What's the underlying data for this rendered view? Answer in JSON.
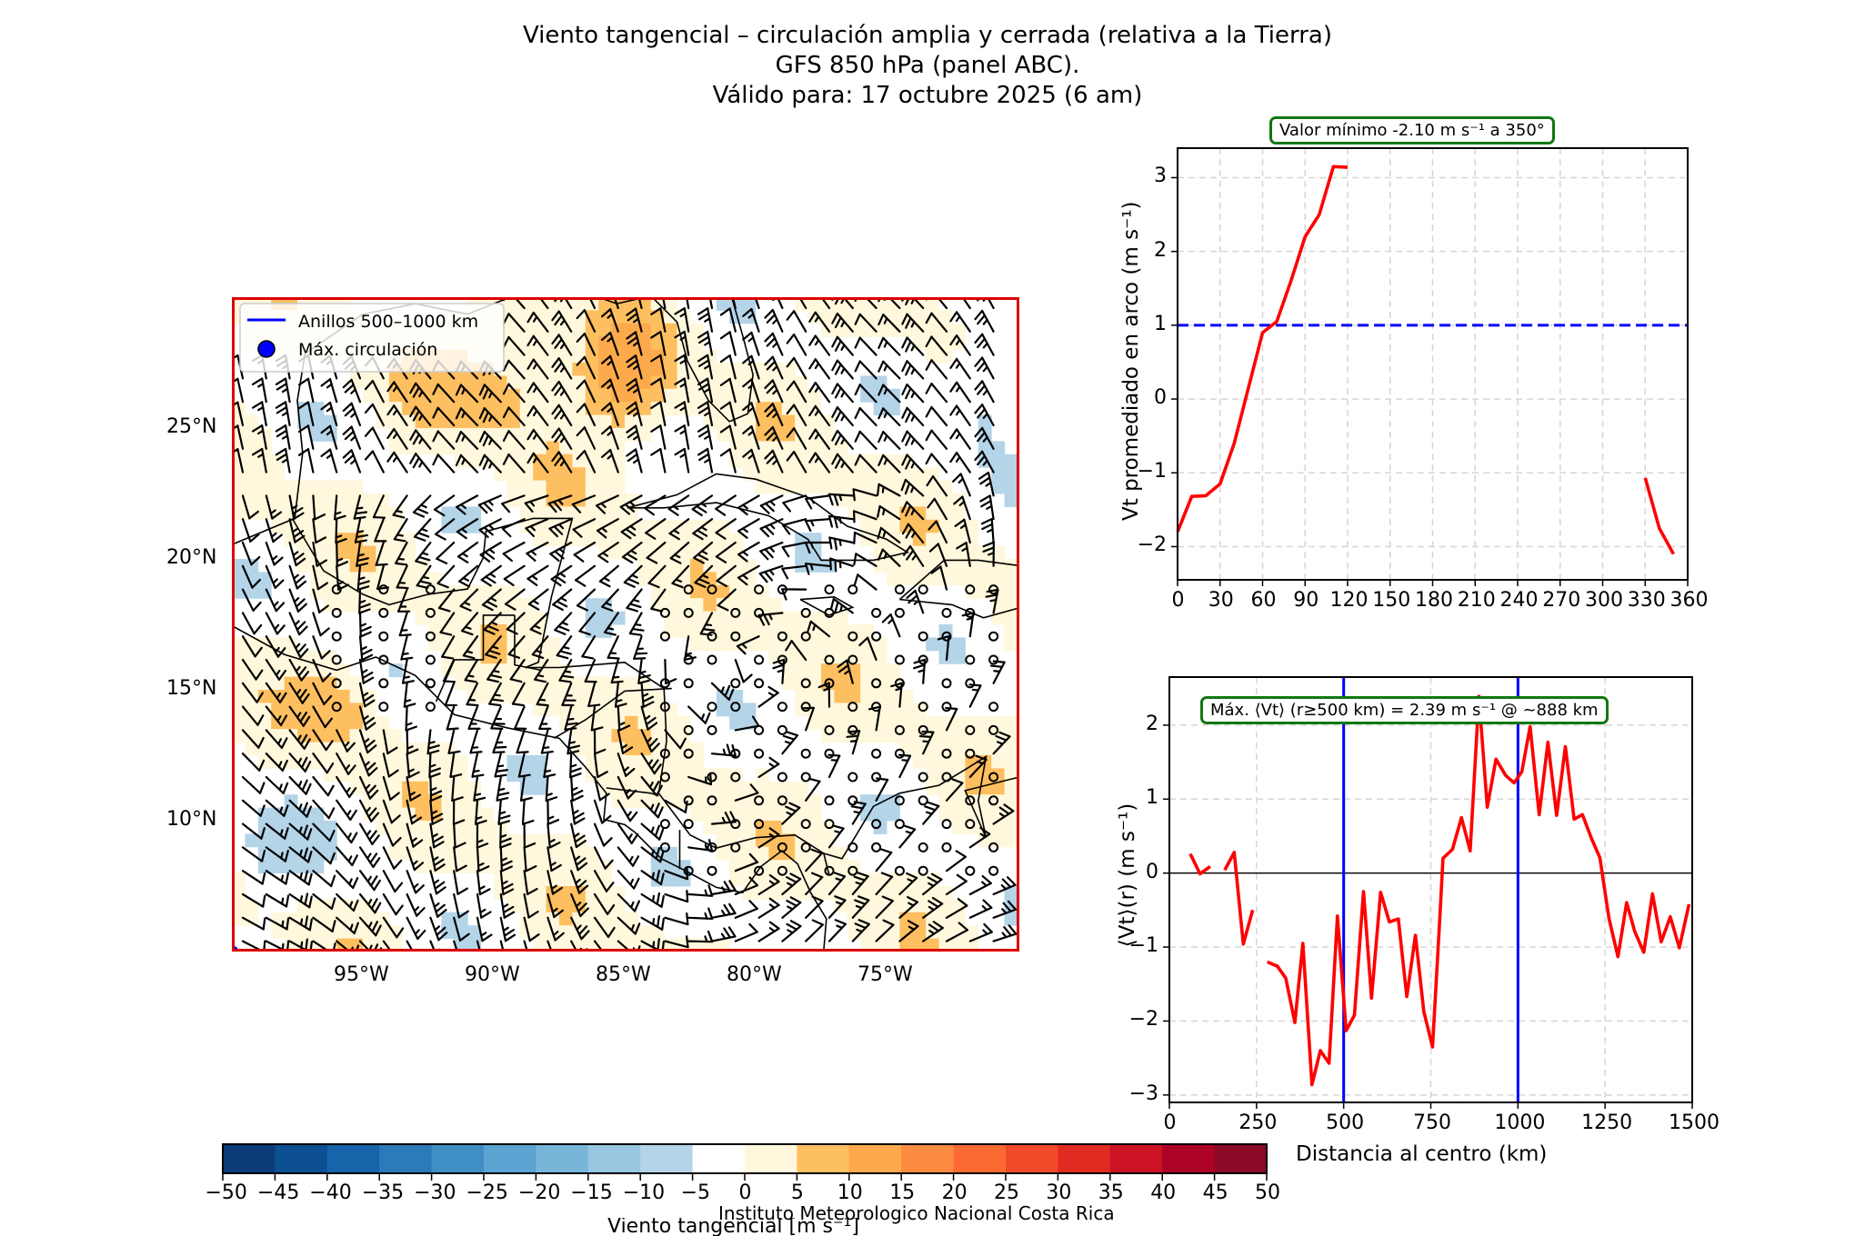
{
  "figure": {
    "title_line1": "Viento tangencial – circulación amplia y cerrada (relativa a la Tierra)",
    "title_line2": "GFS 850 hPa (panel ABC).",
    "title_line3": "Válido para: 17 octubre 2025 (6 am)",
    "credit": "Instituto Meteorologico Nacional Costa Rica"
  },
  "map": {
    "legend": {
      "rings_label": "Anillos 500–1000 km",
      "max_label": "Máx. circulación"
    },
    "lat_ticks": [
      "25°N",
      "20°N",
      "15°N",
      "10°N"
    ],
    "lon_ticks": [
      "95°W",
      "90°W",
      "85°W",
      "80°W",
      "75°W"
    ],
    "frame_color": "#dd0000"
  },
  "colorbar": {
    "label": "Viento tangencial [m s⁻¹]",
    "ticks": [
      "−50",
      "−45",
      "−40",
      "−35",
      "−30",
      "−25",
      "−20",
      "−15",
      "−10",
      "−5",
      "0",
      "5",
      "10",
      "15",
      "20",
      "25",
      "30",
      "35",
      "40",
      "45",
      "50"
    ],
    "colors": [
      "#0b3b78",
      "#0c4f93",
      "#1764ab",
      "#2b7bba",
      "#3f8fc5",
      "#5ba3d0",
      "#78b5d8",
      "#99c7e2",
      "#b4d4e8",
      "#ffffff",
      "#fff8dc",
      "#fdbf5f",
      "#fdaa4c",
      "#fc8b3f",
      "#fb6a32",
      "#f04a2a",
      "#e02a22",
      "#cb1324",
      "#ac0327",
      "#8a0a27"
    ]
  },
  "chart_data": [
    {
      "type": "line",
      "title": "Valor mínimo -2.10 m s⁻¹ a 350°",
      "xlabel": "",
      "ylabel": "Vt promediado en arco (m s⁻¹)",
      "xlim": [
        0,
        360
      ],
      "ylim": [
        -2.45,
        3.4
      ],
      "xticks": [
        "0",
        "30",
        "60",
        "90",
        "120",
        "150",
        "180",
        "210",
        "240",
        "270",
        "300",
        "330",
        "360"
      ],
      "yticks": [
        "−2",
        "−1",
        "0",
        "1",
        "2",
        "3"
      ],
      "grid": true,
      "threshold": {
        "value": 1,
        "color": "#0000ff",
        "style": "dashed"
      },
      "series": [
        {
          "name": "segment-1",
          "color": "#ff0000",
          "x": [
            0,
            10,
            20,
            30,
            40,
            50,
            60,
            70,
            80,
            90,
            100,
            110,
            120
          ],
          "y": [
            -1.8,
            -1.32,
            -1.31,
            -1.15,
            -0.6,
            0.15,
            0.9,
            1.05,
            1.6,
            2.2,
            2.5,
            3.15,
            3.14
          ]
        },
        {
          "name": "segment-2",
          "color": "#ff0000",
          "x": [
            330,
            340,
            350
          ],
          "y": [
            -1.07,
            -1.75,
            -2.1
          ]
        }
      ]
    },
    {
      "type": "line",
      "title": "Máx. ⟨Vt⟩ (r≥500 km) = 2.39 m s⁻¹ @ ~888 km",
      "xlabel": "Distancia al centro (km)",
      "ylabel": "⟨Vt⟩(r) (m s⁻¹)",
      "xlim": [
        0,
        1500
      ],
      "ylim": [
        -3.1,
        2.65
      ],
      "xticks": [
        "0",
        "250",
        "500",
        "750",
        "1000",
        "1250",
        "1500"
      ],
      "yticks": [
        "−3",
        "−2",
        "−1",
        "0",
        "1",
        "2"
      ],
      "grid": true,
      "vlines": [
        {
          "value": 500,
          "color": "#0000ff"
        },
        {
          "value": 1000,
          "color": "#0000ff"
        }
      ],
      "zero_line": true,
      "series": [
        {
          "name": "segment-1",
          "color": "#ff0000",
          "x": [
            60,
            88,
            117
          ],
          "y": [
            0.26,
            -0.01,
            0.09
          ]
        },
        {
          "name": "segment-2",
          "color": "#ff0000",
          "x": [
            159,
            186,
            212,
            239
          ],
          "y": [
            0.04,
            0.28,
            -0.96,
            -0.5
          ]
        },
        {
          "name": "segment-3",
          "color": "#ff0000",
          "x": [
            281,
            310,
            334,
            360,
            383,
            409,
            433,
            458,
            482,
            507,
            531,
            557,
            580,
            606,
            631,
            657,
            681,
            706,
            730,
            755,
            777,
            785,
            812,
            838,
            863,
            888,
            912,
            937,
            965,
            989,
            1011,
            1035,
            1061,
            1086,
            1111,
            1136,
            1161,
            1185,
            1210,
            1235,
            1261,
            1287,
            1312,
            1335,
            1361,
            1386,
            1411,
            1437,
            1463,
            1491
          ],
          "y": [
            -1.2,
            -1.26,
            -1.42,
            -2.02,
            -0.95,
            -2.86,
            -2.4,
            -2.57,
            -0.58,
            -2.13,
            -1.92,
            -0.25,
            -1.69,
            -0.26,
            -0.66,
            -0.62,
            -1.67,
            -0.84,
            -1.87,
            -2.35,
            -0.5,
            0.2,
            0.32,
            0.75,
            0.3,
            2.39,
            0.89,
            1.54,
            1.32,
            1.22,
            1.37,
            1.98,
            0.79,
            1.77,
            0.78,
            1.71,
            0.73,
            0.79,
            0.48,
            0.21,
            -0.61,
            -1.13,
            -0.4,
            -0.79,
            -1.07,
            -0.28,
            -0.93,
            -0.59,
            -1.01,
            -0.42
          ]
        }
      ]
    }
  ]
}
